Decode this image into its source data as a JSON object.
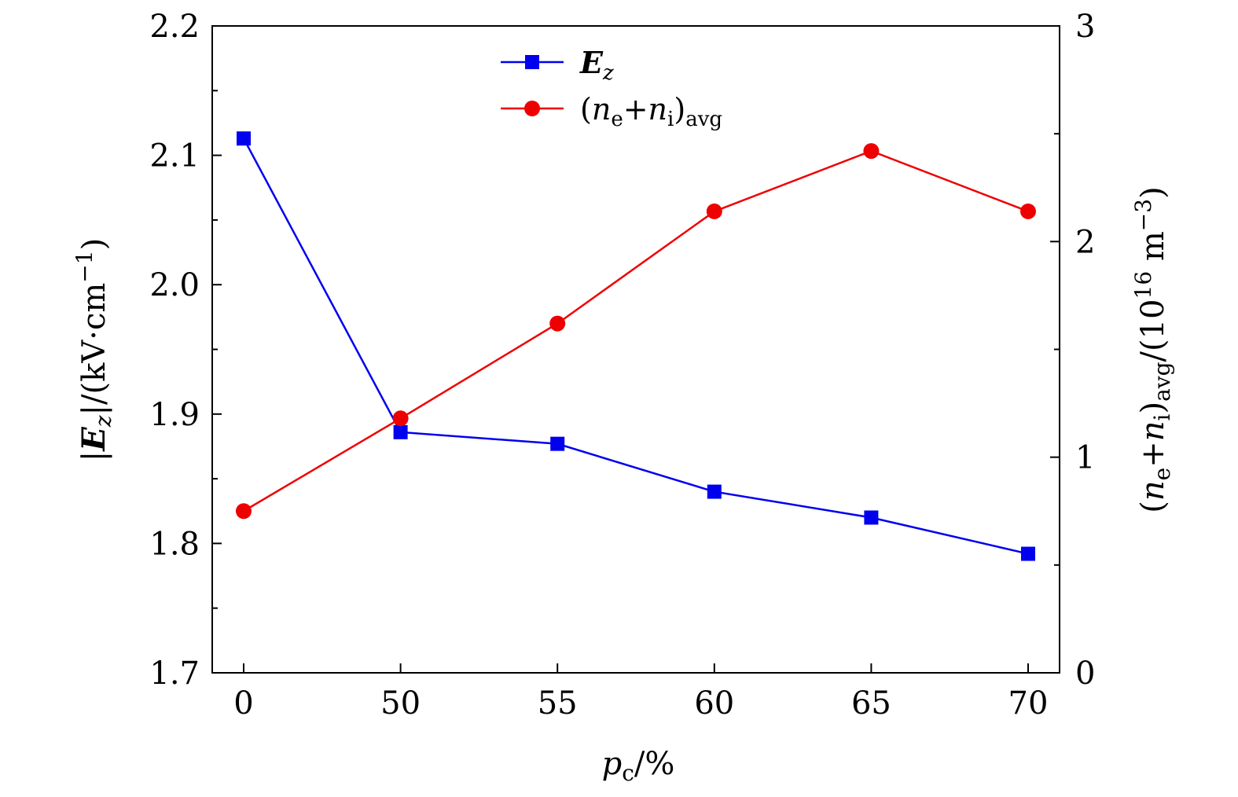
{
  "chart_data": {
    "type": "line",
    "categories": [
      "0",
      "50",
      "55",
      "60",
      "65",
      "70"
    ],
    "xlabel": "p_c/%",
    "ylabel_left": "|E_z|/(kV·cm^-1)",
    "ylabel_right": "(n_e+n_i)_avg/(10^16 m^-3)",
    "ylim_left": [
      1.7,
      2.2
    ],
    "ylim_right": [
      0,
      3
    ],
    "yticks_left": [
      "1.7",
      "1.8",
      "1.9",
      "2.0",
      "2.1",
      "2.2"
    ],
    "yticks_right": [
      "0",
      "1",
      "2",
      "3"
    ],
    "grid": false,
    "legend_position": "top-center",
    "series": [
      {
        "name": "E_z",
        "axis": "left",
        "color": "#0000ee",
        "marker": "square",
        "values": [
          2.113,
          1.886,
          1.877,
          1.84,
          1.82,
          1.792
        ]
      },
      {
        "name": "(n_e+n_i)_avg",
        "axis": "right",
        "color": "#ee0000",
        "marker": "circle",
        "values": [
          0.75,
          1.18,
          1.62,
          2.14,
          2.42,
          2.14
        ]
      }
    ]
  },
  "text": {
    "xlabel_main": "p",
    "xlabel_sub": "c",
    "xlabel_rest": "/%",
    "yleft_bar_open": "|",
    "yleft_E": "E",
    "yleft_z": "z",
    "yleft_rest": "|/(kV·cm",
    "yleft_sup": "−1",
    "yleft_close": ")",
    "yright_open": "(",
    "yright_n1": "n",
    "yright_e": "e",
    "yright_plus": "+",
    "yright_n2": "n",
    "yright_i": "i",
    "yright_close": ")",
    "yright_avg": "avg",
    "yright_rest": "/(10",
    "yright_sup16": "16",
    "yright_unit": " m",
    "yright_supm3": "−3",
    "yright_end": ")",
    "legend_ez_E": "E",
    "legend_ez_z": "z",
    "legend_n_open": "(",
    "legend_n_n1": "n",
    "legend_n_e": "e",
    "legend_n_plus": "+",
    "legend_n_n2": "n",
    "legend_n_i": "i",
    "legend_n_close": ")",
    "legend_n_avg": "avg"
  }
}
